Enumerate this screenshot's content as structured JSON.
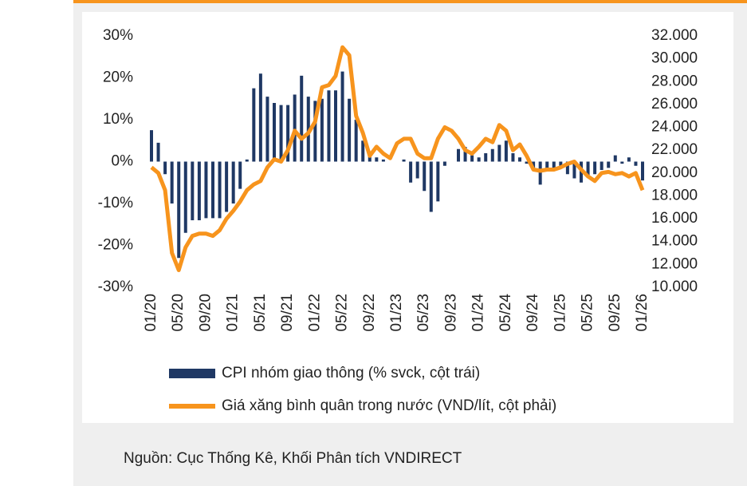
{
  "chart_data": {
    "type": "combo",
    "categories": [
      "01/20",
      null,
      null,
      null,
      "05/20",
      null,
      null,
      null,
      "09/20",
      null,
      null,
      null,
      "01/21",
      null,
      null,
      null,
      "05/21",
      null,
      null,
      null,
      "09/21",
      null,
      null,
      null,
      "01/22",
      null,
      null,
      null,
      "05/22",
      null,
      null,
      null,
      "09/22",
      null,
      null,
      null,
      "01/23",
      null,
      null,
      null,
      "05/23",
      null,
      null,
      null,
      "09/23",
      null,
      null,
      null,
      "01/24",
      null,
      null,
      null,
      "05/24",
      null,
      null,
      null,
      "09/24",
      null,
      null,
      null,
      "01/25",
      null,
      null,
      null,
      "05/25",
      null,
      null,
      null,
      "09/25",
      null,
      null,
      null,
      "01/26"
    ],
    "series": [
      {
        "name": "CPI nhóm giao thông (% svck, cột trái)",
        "type": "bar",
        "color": "#1f3864",
        "axis": "y",
        "values": [
          7.5,
          4.5,
          -3,
          -10,
          -23,
          -17,
          -14,
          -14,
          -13.5,
          -13.5,
          -13.5,
          -12,
          -10,
          -6.5,
          0.5,
          17.5,
          21,
          15.5,
          14,
          13.5,
          13.5,
          16,
          20.5,
          15.5,
          14.5,
          15,
          17,
          17,
          21.5,
          15,
          10,
          5,
          2,
          1,
          0.5,
          0,
          0,
          0.5,
          -5,
          -4,
          -7,
          -12,
          -9.5,
          -1,
          0,
          3,
          3.5,
          1.5,
          1,
          2,
          3,
          4,
          5,
          2,
          1,
          -0.5,
          -2,
          -5.5,
          -2,
          -2,
          -1,
          -3,
          -4,
          -5,
          -3.5,
          -3,
          -2,
          -1.5,
          1.5,
          -0.5,
          1,
          -1,
          -4.5
        ]
      },
      {
        "name": "Giá xăng bình quân trong nước (VND/lít, cột phải)",
        "type": "line",
        "color": "#f7941d",
        "axis": "y2",
        "values": [
          20500,
          20000,
          18500,
          13000,
          11500,
          13500,
          14500,
          14700,
          14700,
          14500,
          15000,
          16000,
          16700,
          17500,
          18500,
          19000,
          19300,
          20500,
          21200,
          21000,
          22000,
          23700,
          23000,
          23500,
          24500,
          27500,
          27700,
          28500,
          31000,
          30300,
          25000,
          23500,
          21500,
          22300,
          21700,
          21300,
          22600,
          23000,
          23000,
          21700,
          21300,
          21300,
          23000,
          24000,
          23700,
          23000,
          22000,
          21700,
          22300,
          23000,
          22700,
          24200,
          23700,
          22000,
          22500,
          21500,
          20300,
          20200,
          20300,
          20300,
          20500,
          20800,
          21000,
          20300,
          19700,
          19300,
          20000,
          20100,
          19900,
          20000,
          19700,
          20000,
          18500
        ]
      }
    ],
    "ylim": [
      -30,
      30
    ],
    "yticks": [
      {
        "value": -30,
        "label": "-30%"
      },
      {
        "value": -20,
        "label": "-20%"
      },
      {
        "value": -10,
        "label": "-10%"
      },
      {
        "value": 0,
        "label": "0%"
      },
      {
        "value": 10,
        "label": "10%"
      },
      {
        "value": 20,
        "label": "20%"
      },
      {
        "value": 30,
        "label": "30%"
      }
    ],
    "y2lim": [
      10000,
      32000
    ],
    "y2ticks": [
      {
        "value": 10000,
        "label": "10.000"
      },
      {
        "value": 12000,
        "label": "12.000"
      },
      {
        "value": 14000,
        "label": "14.000"
      },
      {
        "value": 16000,
        "label": "16.000"
      },
      {
        "value": 18000,
        "label": "18.000"
      },
      {
        "value": 20000,
        "label": "20.000"
      },
      {
        "value": 22000,
        "label": "22.000"
      },
      {
        "value": 24000,
        "label": "24.000"
      },
      {
        "value": 26000,
        "label": "26.000"
      },
      {
        "value": 28000,
        "label": "28.000"
      },
      {
        "value": 30000,
        "label": "30.000"
      },
      {
        "value": 32000,
        "label": "32.000"
      }
    ],
    "grid": false,
    "legend": "bottom",
    "source": "Nguồn: Cục Thống Kê, Khối Phân tích VNDIRECT"
  }
}
